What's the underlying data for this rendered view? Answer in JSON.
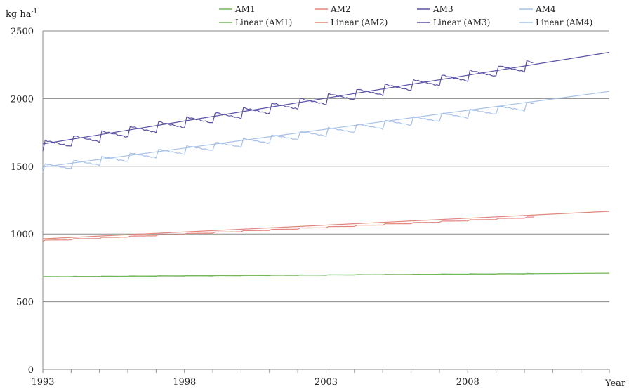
{
  "chart_data": {
    "type": "line",
    "title": "",
    "ylabel": "kg ha",
    "ylabel_sup": "-1",
    "xlabel": "Year",
    "ylim": [
      0,
      2500
    ],
    "xlim": [
      1993,
      2013
    ],
    "grid": true,
    "legend_position": "top-right",
    "y_ticks": [
      "0",
      "500",
      "1000",
      "1500",
      "2000",
      "2500"
    ],
    "y_tick_values": [
      0,
      500,
      1000,
      1500,
      2000,
      2500
    ],
    "x_ticks": [
      "1993",
      "1998",
      "2003",
      "2008"
    ],
    "x_tick_values": [
      1993,
      1998,
      2003,
      2008
    ],
    "series": [
      {
        "name": "AM1",
        "color": "#74b75a",
        "kind": "data",
        "x_start": 1993,
        "x_end": 2010.3,
        "start": 684,
        "slope": 1.3,
        "amp": 2
      },
      {
        "name": "AM2",
        "color": "#e2877d",
        "kind": "data",
        "x_start": 1993,
        "x_end": 2010.3,
        "start": 950,
        "slope": 10.0,
        "amp": 4
      },
      {
        "name": "AM3",
        "color": "#5a52a6",
        "kind": "data",
        "x_start": 1993,
        "x_end": 2010.3,
        "start": 1650,
        "slope": 34.5,
        "amp": 38
      },
      {
        "name": "AM4",
        "color": "#a7c1e9",
        "kind": "data",
        "x_start": 1993,
        "x_end": 2010.3,
        "start": 1485,
        "slope": 26.8,
        "amp": 30
      },
      {
        "name": "Linear (AM1)",
        "color": "#74b75a",
        "kind": "trend",
        "x": [
          1993,
          2013
        ],
        "y": [
          684,
          710
        ]
      },
      {
        "name": "Linear (AM2)",
        "color": "#e2877d",
        "kind": "trend",
        "x": [
          1993,
          2013
        ],
        "y": [
          964,
          1167
        ]
      },
      {
        "name": "Linear (AM3)",
        "color": "#5a52a6",
        "kind": "trend",
        "x": [
          1993,
          2013
        ],
        "y": [
          1665,
          2342
        ]
      },
      {
        "name": "Linear (AM4)",
        "color": "#a7c1e9",
        "kind": "trend",
        "x": [
          1993,
          2013
        ],
        "y": [
          1495,
          2053
        ]
      }
    ]
  }
}
